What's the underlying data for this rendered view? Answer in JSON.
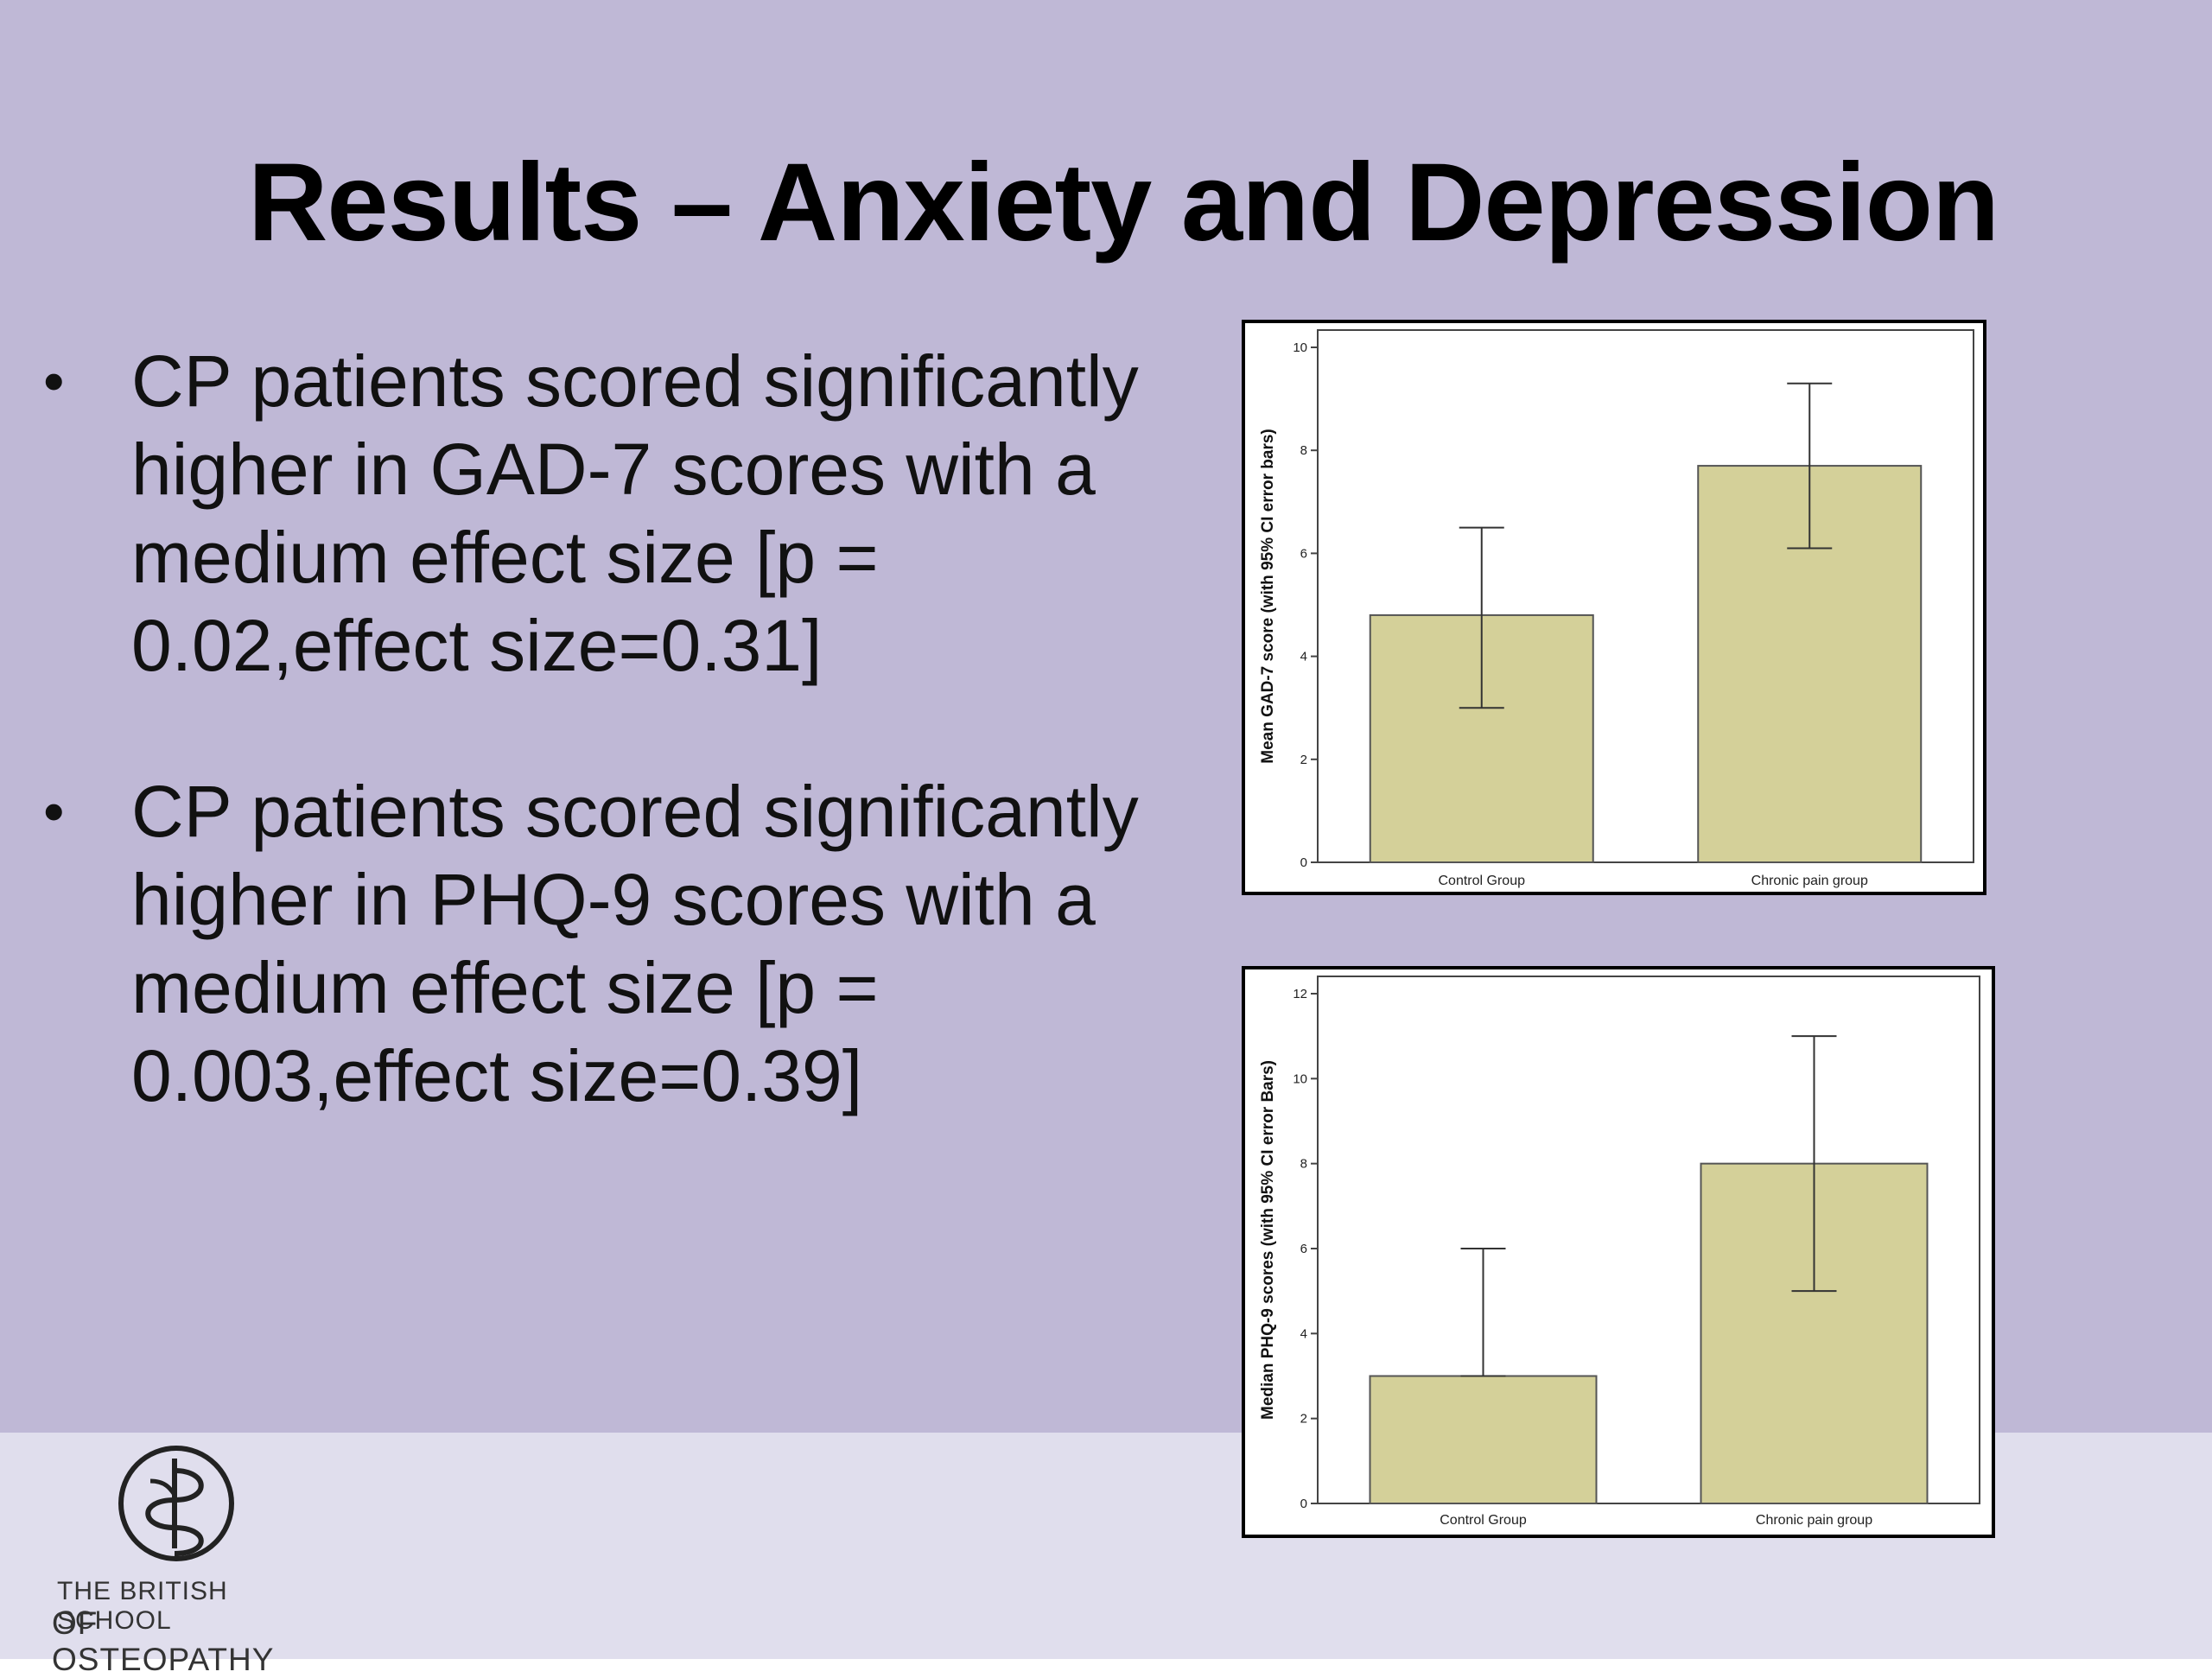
{
  "slide": {
    "title": "Results – Anxiety and Depression",
    "bullets": [
      "CP patients scored significantly higher in GAD-7 scores with a medium effect size [p = 0.02,effect size=0.31]",
      "CP patients scored significantly higher in PHQ-9 scores with a medium effect size [p = 0.003,effect size=0.39]"
    ],
    "logo": {
      "line1": "THE BRITISH SCHOOL",
      "line2": "OF OSTEOPATHY"
    }
  },
  "colors": {
    "background": "#bfb8d6",
    "footer": "#e0deed",
    "bar_fill": "#d4d099",
    "bar_stroke": "#555555"
  },
  "chart_data": [
    {
      "type": "bar",
      "title": "",
      "xlabel": "",
      "ylabel": "Mean GAD-7 score (with 95% CI error bars)",
      "categories": [
        "Control Group",
        "Chronic pain group"
      ],
      "values": [
        4.8,
        7.7
      ],
      "error_low": [
        3.0,
        6.1
      ],
      "error_high": [
        6.5,
        9.3
      ],
      "ylim": [
        0,
        10
      ],
      "yticks": [
        "0",
        "2",
        "4",
        "6",
        "8",
        "10"
      ]
    },
    {
      "type": "bar",
      "title": "",
      "xlabel": "",
      "ylabel": "Median PHQ-9 scores (with 95% CI error Bars)",
      "categories": [
        "Control Group",
        "Chronic pain group"
      ],
      "values": [
        3,
        8
      ],
      "error_low": [
        3,
        5
      ],
      "error_high": [
        6,
        11
      ],
      "ylim": [
        0,
        12
      ],
      "yticks": [
        "0",
        "2",
        "4",
        "6",
        "8",
        "10",
        "12"
      ]
    }
  ]
}
